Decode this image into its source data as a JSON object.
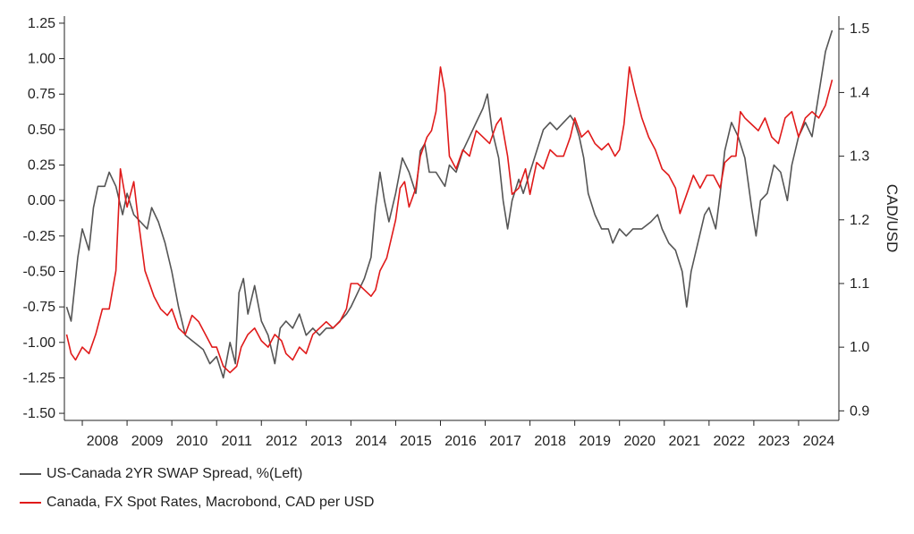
{
  "chart_data": {
    "type": "line",
    "title": "",
    "xlabel": "",
    "ylabel_left": "",
    "ylabel_right": "CAD/USD",
    "x_ticks": [
      "2008",
      "2009",
      "2010",
      "2011",
      "2012",
      "2013",
      "2014",
      "2015",
      "2016",
      "2017",
      "2018",
      "2019",
      "2020",
      "2021",
      "2022",
      "2023",
      "2024"
    ],
    "xlim": [
      2007.6,
      2024.9
    ],
    "y_left": {
      "ylim": [
        -1.55,
        1.3
      ],
      "ticks": [
        "-1.50",
        "-1.25",
        "-1.00",
        "-0.75",
        "-0.50",
        "-0.25",
        "0.00",
        "0.25",
        "0.50",
        "0.75",
        "1.00",
        "1.25"
      ]
    },
    "y_right": {
      "ylim": [
        0.885,
        1.52
      ],
      "ticks": [
        "0.9",
        "1.0",
        "1.1",
        "1.2",
        "1.3",
        "1.4",
        "1.5"
      ]
    },
    "grid": false,
    "legend_position": "bottom-left",
    "series": [
      {
        "name": "US-Canada 2YR SWAP Spread, %(Left)",
        "axis": "left",
        "color": "#555555",
        "points": [
          [
            2007.65,
            -0.75
          ],
          [
            2007.75,
            -0.85
          ],
          [
            2007.9,
            -0.4
          ],
          [
            2008.0,
            -0.2
          ],
          [
            2008.15,
            -0.35
          ],
          [
            2008.25,
            -0.05
          ],
          [
            2008.35,
            0.1
          ],
          [
            2008.5,
            0.1
          ],
          [
            2008.6,
            0.2
          ],
          [
            2008.75,
            0.1
          ],
          [
            2008.9,
            -0.1
          ],
          [
            2009.0,
            0.05
          ],
          [
            2009.15,
            -0.1
          ],
          [
            2009.3,
            -0.15
          ],
          [
            2009.45,
            -0.2
          ],
          [
            2009.55,
            -0.05
          ],
          [
            2009.7,
            -0.15
          ],
          [
            2009.85,
            -0.3
          ],
          [
            2010.0,
            -0.5
          ],
          [
            2010.15,
            -0.75
          ],
          [
            2010.3,
            -0.95
          ],
          [
            2010.5,
            -1.0
          ],
          [
            2010.7,
            -1.05
          ],
          [
            2010.85,
            -1.15
          ],
          [
            2011.0,
            -1.1
          ],
          [
            2011.15,
            -1.25
          ],
          [
            2011.3,
            -1.0
          ],
          [
            2011.42,
            -1.15
          ],
          [
            2011.5,
            -0.65
          ],
          [
            2011.6,
            -0.55
          ],
          [
            2011.7,
            -0.8
          ],
          [
            2011.85,
            -0.6
          ],
          [
            2012.0,
            -0.85
          ],
          [
            2012.15,
            -0.95
          ],
          [
            2012.3,
            -1.15
          ],
          [
            2012.42,
            -0.9
          ],
          [
            2012.55,
            -0.85
          ],
          [
            2012.7,
            -0.9
          ],
          [
            2012.85,
            -0.8
          ],
          [
            2013.0,
            -0.95
          ],
          [
            2013.15,
            -0.9
          ],
          [
            2013.3,
            -0.95
          ],
          [
            2013.45,
            -0.9
          ],
          [
            2013.6,
            -0.9
          ],
          [
            2013.75,
            -0.85
          ],
          [
            2013.9,
            -0.8
          ],
          [
            2014.0,
            -0.75
          ],
          [
            2014.15,
            -0.65
          ],
          [
            2014.3,
            -0.55
          ],
          [
            2014.45,
            -0.4
          ],
          [
            2014.55,
            -0.05
          ],
          [
            2014.65,
            0.2
          ],
          [
            2014.75,
            0.0
          ],
          [
            2014.85,
            -0.15
          ],
          [
            2015.0,
            0.05
          ],
          [
            2015.15,
            0.3
          ],
          [
            2015.3,
            0.2
          ],
          [
            2015.45,
            0.05
          ],
          [
            2015.55,
            0.35
          ],
          [
            2015.65,
            0.4
          ],
          [
            2015.75,
            0.2
          ],
          [
            2015.9,
            0.2
          ],
          [
            2016.0,
            0.15
          ],
          [
            2016.1,
            0.1
          ],
          [
            2016.2,
            0.25
          ],
          [
            2016.35,
            0.2
          ],
          [
            2016.5,
            0.35
          ],
          [
            2016.65,
            0.45
          ],
          [
            2016.8,
            0.55
          ],
          [
            2016.95,
            0.65
          ],
          [
            2017.05,
            0.75
          ],
          [
            2017.15,
            0.5
          ],
          [
            2017.3,
            0.3
          ],
          [
            2017.4,
            0.0
          ],
          [
            2017.5,
            -0.2
          ],
          [
            2017.6,
            0.0
          ],
          [
            2017.75,
            0.15
          ],
          [
            2017.85,
            0.05
          ],
          [
            2018.0,
            0.2
          ],
          [
            2018.15,
            0.35
          ],
          [
            2018.3,
            0.5
          ],
          [
            2018.45,
            0.55
          ],
          [
            2018.6,
            0.5
          ],
          [
            2018.75,
            0.55
          ],
          [
            2018.9,
            0.6
          ],
          [
            2019.0,
            0.55
          ],
          [
            2019.1,
            0.45
          ],
          [
            2019.2,
            0.3
          ],
          [
            2019.3,
            0.05
          ],
          [
            2019.45,
            -0.1
          ],
          [
            2019.6,
            -0.2
          ],
          [
            2019.75,
            -0.2
          ],
          [
            2019.85,
            -0.3
          ],
          [
            2020.0,
            -0.2
          ],
          [
            2020.15,
            -0.25
          ],
          [
            2020.3,
            -0.2
          ],
          [
            2020.5,
            -0.2
          ],
          [
            2020.7,
            -0.15
          ],
          [
            2020.85,
            -0.1
          ],
          [
            2020.95,
            -0.2
          ],
          [
            2021.1,
            -0.3
          ],
          [
            2021.25,
            -0.35
          ],
          [
            2021.4,
            -0.5
          ],
          [
            2021.5,
            -0.75
          ],
          [
            2021.6,
            -0.5
          ],
          [
            2021.75,
            -0.3
          ],
          [
            2021.9,
            -0.1
          ],
          [
            2022.0,
            -0.05
          ],
          [
            2022.15,
            -0.2
          ],
          [
            2022.25,
            0.05
          ],
          [
            2022.35,
            0.35
          ],
          [
            2022.5,
            0.55
          ],
          [
            2022.65,
            0.45
          ],
          [
            2022.8,
            0.3
          ],
          [
            2022.95,
            -0.05
          ],
          [
            2023.05,
            -0.25
          ],
          [
            2023.15,
            0.0
          ],
          [
            2023.3,
            0.05
          ],
          [
            2023.45,
            0.25
          ],
          [
            2023.6,
            0.2
          ],
          [
            2023.75,
            0.0
          ],
          [
            2023.85,
            0.25
          ],
          [
            2024.0,
            0.45
          ],
          [
            2024.15,
            0.55
          ],
          [
            2024.3,
            0.45
          ],
          [
            2024.45,
            0.75
          ],
          [
            2024.6,
            1.05
          ],
          [
            2024.75,
            1.2
          ]
        ]
      },
      {
        "name": "Canada, FX Spot Rates, Macrobond, CAD per USD",
        "axis": "right",
        "color": "#e01a1a",
        "points": [
          [
            2007.65,
            1.02
          ],
          [
            2007.75,
            0.99
          ],
          [
            2007.85,
            0.98
          ],
          [
            2008.0,
            1.0
          ],
          [
            2008.15,
            0.99
          ],
          [
            2008.3,
            1.02
          ],
          [
            2008.45,
            1.06
          ],
          [
            2008.6,
            1.06
          ],
          [
            2008.75,
            1.12
          ],
          [
            2008.85,
            1.28
          ],
          [
            2009.0,
            1.22
          ],
          [
            2009.15,
            1.26
          ],
          [
            2009.25,
            1.2
          ],
          [
            2009.4,
            1.12
          ],
          [
            2009.6,
            1.08
          ],
          [
            2009.75,
            1.06
          ],
          [
            2009.9,
            1.05
          ],
          [
            2010.0,
            1.06
          ],
          [
            2010.15,
            1.03
          ],
          [
            2010.3,
            1.02
          ],
          [
            2010.45,
            1.05
          ],
          [
            2010.6,
            1.04
          ],
          [
            2010.75,
            1.02
          ],
          [
            2010.9,
            1.0
          ],
          [
            2011.0,
            1.0
          ],
          [
            2011.15,
            0.97
          ],
          [
            2011.3,
            0.96
          ],
          [
            2011.45,
            0.97
          ],
          [
            2011.55,
            1.0
          ],
          [
            2011.7,
            1.02
          ],
          [
            2011.85,
            1.03
          ],
          [
            2012.0,
            1.01
          ],
          [
            2012.15,
            1.0
          ],
          [
            2012.3,
            1.02
          ],
          [
            2012.45,
            1.01
          ],
          [
            2012.55,
            0.99
          ],
          [
            2012.7,
            0.98
          ],
          [
            2012.85,
            1.0
          ],
          [
            2013.0,
            0.99
          ],
          [
            2013.15,
            1.02
          ],
          [
            2013.3,
            1.03
          ],
          [
            2013.45,
            1.04
          ],
          [
            2013.6,
            1.03
          ],
          [
            2013.75,
            1.04
          ],
          [
            2013.9,
            1.06
          ],
          [
            2014.0,
            1.1
          ],
          [
            2014.15,
            1.1
          ],
          [
            2014.3,
            1.09
          ],
          [
            2014.45,
            1.08
          ],
          [
            2014.55,
            1.09
          ],
          [
            2014.65,
            1.12
          ],
          [
            2014.8,
            1.14
          ],
          [
            2015.0,
            1.2
          ],
          [
            2015.1,
            1.25
          ],
          [
            2015.2,
            1.26
          ],
          [
            2015.3,
            1.22
          ],
          [
            2015.45,
            1.25
          ],
          [
            2015.55,
            1.3
          ],
          [
            2015.7,
            1.33
          ],
          [
            2015.8,
            1.34
          ],
          [
            2015.9,
            1.37
          ],
          [
            2016.0,
            1.44
          ],
          [
            2016.1,
            1.4
          ],
          [
            2016.2,
            1.3
          ],
          [
            2016.35,
            1.28
          ],
          [
            2016.5,
            1.31
          ],
          [
            2016.65,
            1.3
          ],
          [
            2016.8,
            1.34
          ],
          [
            2016.95,
            1.33
          ],
          [
            2017.1,
            1.32
          ],
          [
            2017.25,
            1.35
          ],
          [
            2017.35,
            1.36
          ],
          [
            2017.5,
            1.3
          ],
          [
            2017.6,
            1.24
          ],
          [
            2017.75,
            1.25
          ],
          [
            2017.9,
            1.28
          ],
          [
            2018.0,
            1.24
          ],
          [
            2018.15,
            1.29
          ],
          [
            2018.3,
            1.28
          ],
          [
            2018.45,
            1.31
          ],
          [
            2018.6,
            1.3
          ],
          [
            2018.75,
            1.3
          ],
          [
            2018.9,
            1.33
          ],
          [
            2019.0,
            1.36
          ],
          [
            2019.15,
            1.33
          ],
          [
            2019.3,
            1.34
          ],
          [
            2019.45,
            1.32
          ],
          [
            2019.6,
            1.31
          ],
          [
            2019.75,
            1.32
          ],
          [
            2019.9,
            1.3
          ],
          [
            2020.0,
            1.31
          ],
          [
            2020.1,
            1.35
          ],
          [
            2020.22,
            1.44
          ],
          [
            2020.35,
            1.4
          ],
          [
            2020.5,
            1.36
          ],
          [
            2020.65,
            1.33
          ],
          [
            2020.8,
            1.31
          ],
          [
            2020.95,
            1.28
          ],
          [
            2021.1,
            1.27
          ],
          [
            2021.25,
            1.25
          ],
          [
            2021.35,
            1.21
          ],
          [
            2021.5,
            1.24
          ],
          [
            2021.65,
            1.27
          ],
          [
            2021.8,
            1.25
          ],
          [
            2021.95,
            1.27
          ],
          [
            2022.1,
            1.27
          ],
          [
            2022.25,
            1.25
          ],
          [
            2022.35,
            1.29
          ],
          [
            2022.5,
            1.3
          ],
          [
            2022.6,
            1.3
          ],
          [
            2022.7,
            1.37
          ],
          [
            2022.8,
            1.36
          ],
          [
            2022.95,
            1.35
          ],
          [
            2023.1,
            1.34
          ],
          [
            2023.25,
            1.36
          ],
          [
            2023.4,
            1.33
          ],
          [
            2023.55,
            1.32
          ],
          [
            2023.7,
            1.36
          ],
          [
            2023.85,
            1.37
          ],
          [
            2024.0,
            1.33
          ],
          [
            2024.15,
            1.36
          ],
          [
            2024.3,
            1.37
          ],
          [
            2024.45,
            1.36
          ],
          [
            2024.6,
            1.38
          ],
          [
            2024.75,
            1.42
          ]
        ]
      }
    ]
  }
}
